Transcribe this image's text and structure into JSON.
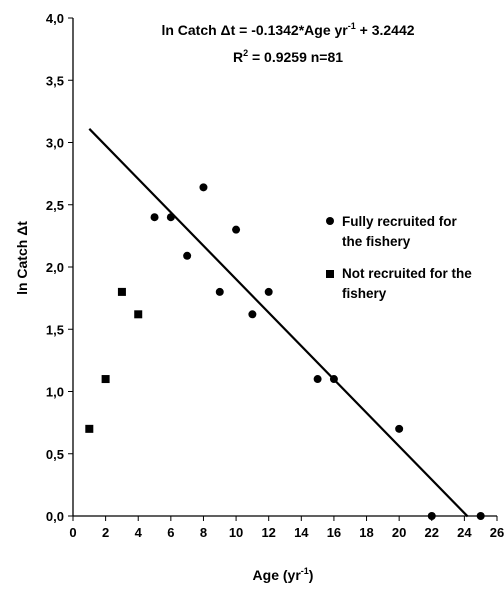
{
  "chart_data": {
    "type": "scatter",
    "xlabel": "Age (yr",
    "xlabel_sup": "-1",
    "xlabel_tail": ")",
    "ylabel": "ln Catch Δt",
    "xlim": [
      0,
      26
    ],
    "ylim": [
      0,
      4
    ],
    "x_ticks": [
      0,
      2,
      4,
      6,
      8,
      10,
      12,
      14,
      16,
      18,
      20,
      22,
      24,
      26
    ],
    "x_tick_labels": [
      "0",
      "2",
      "4",
      "6",
      "8",
      "10",
      "12",
      "14",
      "16",
      "18",
      "20",
      "22",
      "24",
      "26"
    ],
    "y_ticks": [
      0,
      0.5,
      1,
      1.5,
      2,
      2.5,
      3,
      3.5,
      4
    ],
    "y_tick_labels": [
      "0,0",
      "0,5",
      "1,0",
      "1,5",
      "2,0",
      "2,5",
      "3,0",
      "3,5",
      "4,0"
    ],
    "grid": false,
    "legend_position": "right",
    "series": [
      {
        "name": "Fully recruited for the fishery",
        "marker": "circle",
        "points": [
          [
            5,
            2.4
          ],
          [
            6,
            2.4
          ],
          [
            7,
            2.09
          ],
          [
            8,
            2.64
          ],
          [
            9,
            1.8
          ],
          [
            10,
            2.3
          ],
          [
            11,
            1.62
          ],
          [
            12,
            1.8
          ],
          [
            15,
            1.1
          ],
          [
            16,
            1.1
          ],
          [
            20,
            0.7
          ],
          [
            22,
            0.0
          ],
          [
            25,
            0.0
          ]
        ]
      },
      {
        "name": "Not recruited for the fishery",
        "marker": "square",
        "points": [
          [
            1,
            0.7
          ],
          [
            2,
            1.1
          ],
          [
            3,
            1.8
          ],
          [
            4,
            1.62
          ]
        ]
      }
    ],
    "regression": {
      "slope": -0.1342,
      "intercept": 3.2442,
      "x_range": [
        1,
        24.2
      ],
      "equation_text_main": "ln Catch Δt = -0.1342*Age yr",
      "equation_sup": "-1",
      "equation_text_tail": " + 3.2442",
      "r2_prefix": "R",
      "r2_sup": "2",
      "r2_text": " = 0.9259 n=81"
    },
    "legend": [
      {
        "marker": "circle",
        "lines": [
          "Fully recruited for",
          "the fishery"
        ]
      },
      {
        "marker": "square",
        "lines": [
          "Not recruited for the",
          "fishery"
        ]
      }
    ]
  }
}
